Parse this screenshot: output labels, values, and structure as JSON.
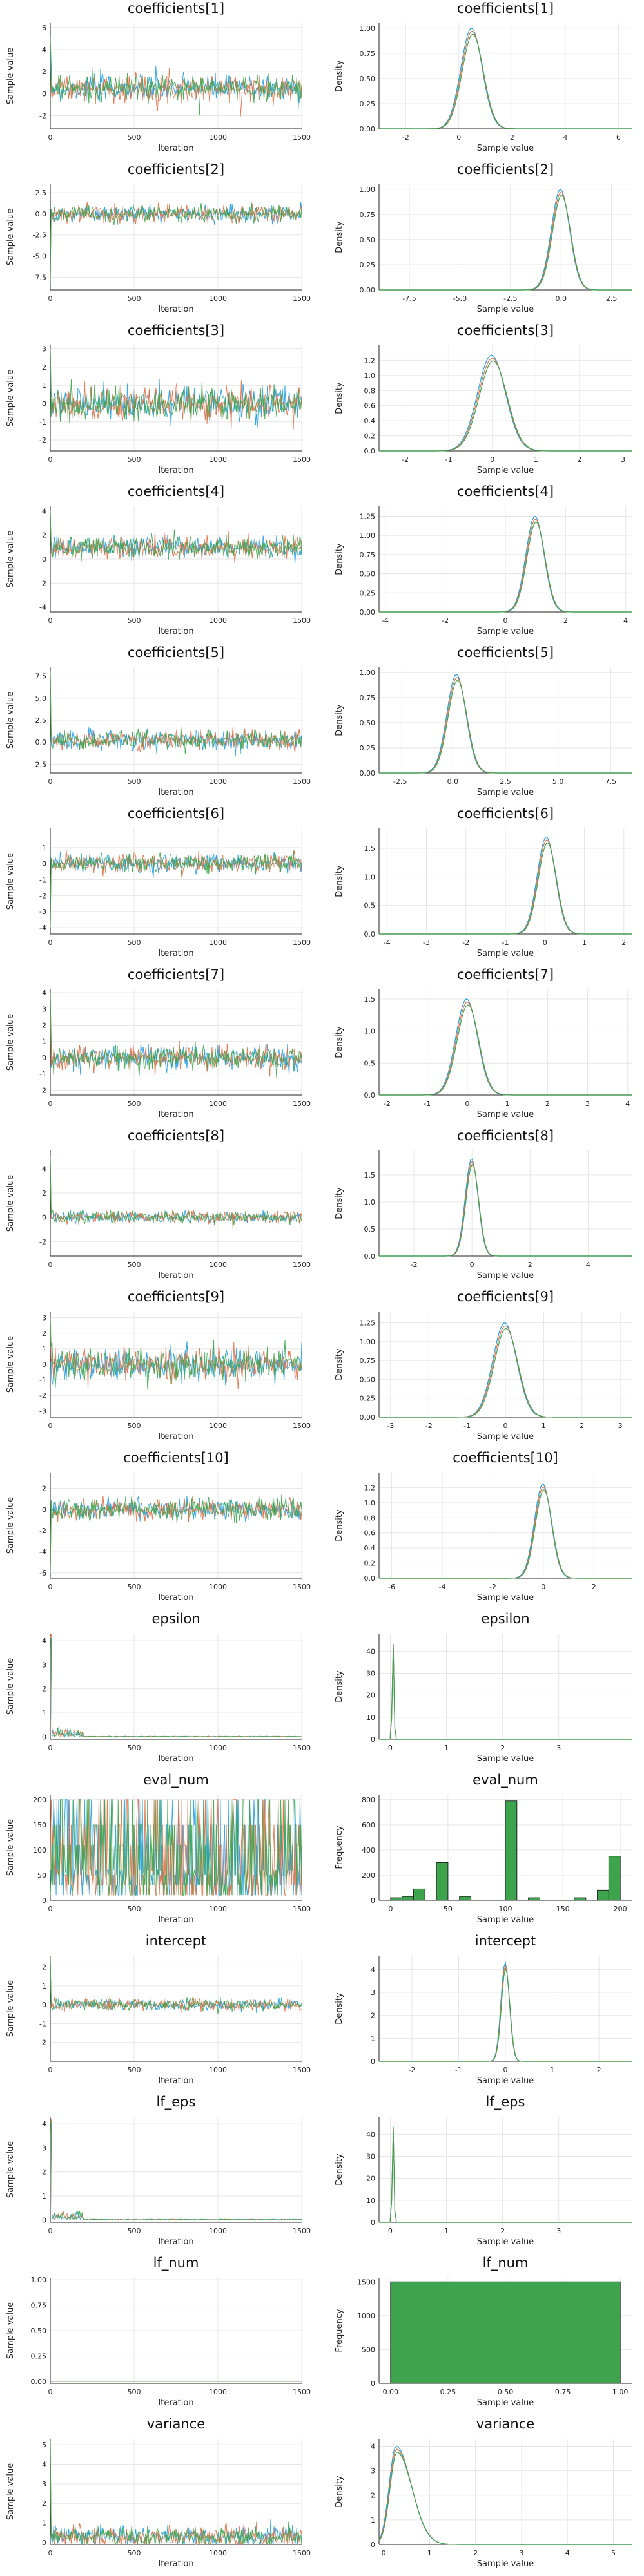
{
  "colors": {
    "chain1": "#1f9ee8",
    "chain2": "#e26f46",
    "chain3": "#3da44d",
    "hist_fill": "#3da44d",
    "grid": "#e6e6e6"
  },
  "chart_data": [
    {
      "param": "coefficients[1]",
      "trace": {
        "type": "line",
        "title": "coefficients[1]",
        "xlabel": "Iteration",
        "ylabel": "Sample value",
        "xlim": [
          0,
          1500
        ],
        "xticks": [
          "0",
          "500",
          "1000",
          "1500"
        ],
        "ylim": [
          -3.2,
          6.4
        ],
        "yticks": [
          "-2",
          "0",
          "2",
          "4",
          "6"
        ],
        "center": 0.5,
        "spread": 0.6,
        "burn_spike": 5
      },
      "density": {
        "type": "line",
        "title": "coefficients[1]",
        "xlabel": "Sample value",
        "ylabel": "Density",
        "xlim": [
          -3,
          6.5
        ],
        "xticks": [
          "-2",
          "0",
          "2",
          "4",
          "6"
        ],
        "ylim": [
          0,
          1.05
        ],
        "yticks": [
          "0.00",
          "0.25",
          "0.50",
          "0.75",
          "1.00"
        ],
        "mode": 0.5,
        "sd": 0.4,
        "peak": 1.0
      }
    },
    {
      "param": "coefficients[2]",
      "trace": {
        "type": "line",
        "title": "coefficients[2]",
        "xlabel": "Iteration",
        "ylabel": "Sample value",
        "xlim": [
          0,
          1500
        ],
        "xticks": [
          "0",
          "500",
          "1000",
          "1500"
        ],
        "ylim": [
          -9,
          3.5
        ],
        "yticks": [
          "-7.5",
          "-5.0",
          "-2.5",
          "0.0",
          "2.5"
        ],
        "center": 0.0,
        "spread": 0.5,
        "burn_spike": -8
      },
      "density": {
        "type": "line",
        "title": "coefficients[2]",
        "xlabel": "Sample value",
        "ylabel": "Density",
        "xlim": [
          -9,
          3.5
        ],
        "xticks": [
          "-7.5",
          "-5.0",
          "-2.5",
          "0.0",
          "2.5"
        ],
        "ylim": [
          0,
          1.05
        ],
        "yticks": [
          "0.00",
          "0.25",
          "0.50",
          "0.75",
          "1.00"
        ],
        "mode": 0.0,
        "sd": 0.45,
        "peak": 1.0
      }
    },
    {
      "param": "coefficients[3]",
      "trace": {
        "type": "line",
        "title": "coefficients[3]",
        "xlabel": "Iteration",
        "ylabel": "Sample value",
        "xlim": [
          0,
          1500
        ],
        "xticks": [
          "0",
          "500",
          "1000",
          "1500"
        ],
        "ylim": [
          -2.6,
          3.2
        ],
        "yticks": [
          "-2",
          "-1",
          "0",
          "1",
          "2",
          "3"
        ],
        "center": 0.0,
        "spread": 0.45,
        "burn_spike": 3
      },
      "density": {
        "type": "line",
        "title": "coefficients[3]",
        "xlabel": "Sample value",
        "ylabel": "Density",
        "xlim": [
          -2.6,
          3.2
        ],
        "xticks": [
          "-2",
          "-1",
          "0",
          "1",
          "2",
          "3"
        ],
        "ylim": [
          0,
          1.4
        ],
        "yticks": [
          "0.0",
          "0.2",
          "0.4",
          "0.6",
          "0.8",
          "1.0",
          "1.2"
        ],
        "mode": 0.0,
        "sd": 0.32,
        "peak": 1.27
      }
    },
    {
      "param": "coefficients[4]",
      "trace": {
        "type": "line",
        "title": "coefficients[4]",
        "xlabel": "Iteration",
        "ylabel": "Sample value",
        "xlim": [
          0,
          1500
        ],
        "xticks": [
          "0",
          "500",
          "1000",
          "1500"
        ],
        "ylim": [
          -4.4,
          4.4
        ],
        "yticks": [
          "-4",
          "-2",
          "0",
          "2",
          "4"
        ],
        "center": 1.0,
        "spread": 0.45,
        "burn_spike": 4
      },
      "density": {
        "type": "line",
        "title": "coefficients[4]",
        "xlabel": "Sample value",
        "ylabel": "Density",
        "xlim": [
          -4.2,
          4.2
        ],
        "xticks": [
          "-4",
          "-2",
          "0",
          "2",
          "4"
        ],
        "ylim": [
          0,
          1.38
        ],
        "yticks": [
          "0.00",
          "0.25",
          "0.50",
          "0.75",
          "1.00",
          "1.25"
        ],
        "mode": 1.0,
        "sd": 0.3,
        "peak": 1.25
      }
    },
    {
      "param": "coefficients[5]",
      "trace": {
        "type": "line",
        "title": "coefficients[5]",
        "xlabel": "Iteration",
        "ylabel": "Sample value",
        "xlim": [
          0,
          1500
        ],
        "xticks": [
          "0",
          "500",
          "1000",
          "1500"
        ],
        "ylim": [
          -3.5,
          8.5
        ],
        "yticks": [
          "-2.5",
          "0.0",
          "2.5",
          "5.0",
          "7.5"
        ],
        "center": 0.2,
        "spread": 0.55,
        "burn_spike": 8
      },
      "density": {
        "type": "line",
        "title": "coefficients[5]",
        "xlabel": "Sample value",
        "ylabel": "Density",
        "xlim": [
          -3.5,
          8.5
        ],
        "xticks": [
          "-2.5",
          "0.0",
          "2.5",
          "5.0",
          "7.5"
        ],
        "ylim": [
          0,
          1.05
        ],
        "yticks": [
          "0.00",
          "0.25",
          "0.50",
          "0.75",
          "1.00"
        ],
        "mode": 0.2,
        "sd": 0.45,
        "peak": 0.98
      }
    },
    {
      "param": "coefficients[6]",
      "trace": {
        "type": "line",
        "title": "coefficients[6]",
        "xlabel": "Iteration",
        "ylabel": "Sample value",
        "xlim": [
          0,
          1500
        ],
        "xticks": [
          "0",
          "500",
          "1000",
          "1500"
        ],
        "ylim": [
          -4.4,
          2.2
        ],
        "yticks": [
          "-4",
          "-3",
          "-2",
          "-1",
          "0",
          "1"
        ],
        "center": 0.0,
        "spread": 0.3,
        "burn_spike": -4
      },
      "density": {
        "type": "line",
        "title": "coefficients[6]",
        "xlabel": "Sample value",
        "ylabel": "Density",
        "xlim": [
          -4.2,
          2.2
        ],
        "xticks": [
          "-4",
          "-3",
          "-2",
          "-1",
          "0",
          "1",
          "2"
        ],
        "ylim": [
          0,
          1.85
        ],
        "yticks": [
          "0.0",
          "0.5",
          "1.0",
          "1.5"
        ],
        "mode": 0.05,
        "sd": 0.23,
        "peak": 1.7
      }
    },
    {
      "param": "coefficients[7]",
      "trace": {
        "type": "line",
        "title": "coefficients[7]",
        "xlabel": "Iteration",
        "ylabel": "Sample value",
        "xlim": [
          0,
          1500
        ],
        "xticks": [
          "0",
          "500",
          "1000",
          "1500"
        ],
        "ylim": [
          -2.3,
          4.2
        ],
        "yticks": [
          "-2",
          "-1",
          "0",
          "1",
          "2",
          "3",
          "4"
        ],
        "center": 0.0,
        "spread": 0.35,
        "burn_spike": 4
      },
      "density": {
        "type": "line",
        "title": "coefficients[7]",
        "xlabel": "Sample value",
        "ylabel": "Density",
        "xlim": [
          -2.2,
          4.1
        ],
        "xticks": [
          "-2",
          "-1",
          "0",
          "1",
          "2",
          "3",
          "4"
        ],
        "ylim": [
          0,
          1.65
        ],
        "yticks": [
          "0.0",
          "0.5",
          "1.0",
          "1.5"
        ],
        "mode": 0.0,
        "sd": 0.27,
        "peak": 1.5
      }
    },
    {
      "param": "coefficients[8]",
      "trace": {
        "type": "line",
        "title": "coefficients[8]",
        "xlabel": "Iteration",
        "ylabel": "Sample value",
        "xlim": [
          0,
          1500
        ],
        "xticks": [
          "0",
          "500",
          "1000",
          "1500"
        ],
        "ylim": [
          -3.2,
          5.5
        ],
        "yticks": [
          "-2",
          "0",
          "2",
          "4"
        ],
        "center": 0.0,
        "spread": 0.25,
        "burn_spike": 5
      },
      "density": {
        "type": "line",
        "title": "coefficients[8]",
        "xlabel": "Sample value",
        "ylabel": "Density",
        "xlim": [
          -3.2,
          5.5
        ],
        "xticks": [
          "-2",
          "0",
          "2",
          "4"
        ],
        "ylim": [
          0,
          1.95
        ],
        "yticks": [
          "0.0",
          "0.5",
          "1.0",
          "1.5"
        ],
        "mode": 0.0,
        "sd": 0.22,
        "peak": 1.8
      }
    },
    {
      "param": "coefficients[9]",
      "trace": {
        "type": "line",
        "title": "coefficients[9]",
        "xlabel": "Iteration",
        "ylabel": "Sample value",
        "xlim": [
          0,
          1500
        ],
        "xticks": [
          "0",
          "500",
          "1000",
          "1500"
        ],
        "ylim": [
          -3.4,
          3.4
        ],
        "yticks": [
          "-3",
          "-2",
          "-1",
          "0",
          "1",
          "2",
          "3"
        ],
        "center": 0.0,
        "spread": 0.5,
        "burn_spike": 3
      },
      "density": {
        "type": "line",
        "title": "coefficients[9]",
        "xlabel": "Sample value",
        "ylabel": "Density",
        "xlim": [
          -3.3,
          3.3
        ],
        "xticks": [
          "-3",
          "-2",
          "-1",
          "0",
          "1",
          "2",
          "3"
        ],
        "ylim": [
          0,
          1.4
        ],
        "yticks": [
          "0.00",
          "0.25",
          "0.50",
          "0.75",
          "1.00",
          "1.25"
        ],
        "mode": 0.0,
        "sd": 0.31,
        "peak": 1.25
      }
    },
    {
      "param": "coefficients[10]",
      "trace": {
        "type": "line",
        "title": "coefficients[10]",
        "xlabel": "Iteration",
        "ylabel": "Sample value",
        "xlim": [
          0,
          1500
        ],
        "xticks": [
          "0",
          "500",
          "1000",
          "1500"
        ],
        "ylim": [
          -6.5,
          3.5
        ],
        "yticks": [
          "-6",
          "-4",
          "-2",
          "0",
          "2"
        ],
        "center": 0.0,
        "spread": 0.5,
        "burn_spike": -6
      },
      "density": {
        "type": "line",
        "title": "coefficients[10]",
        "xlabel": "Sample value",
        "ylabel": "Density",
        "xlim": [
          -6.5,
          3.5
        ],
        "xticks": [
          "-6",
          "-4",
          "-2",
          "0",
          "2"
        ],
        "ylim": [
          0,
          1.4
        ],
        "yticks": [
          "0.0",
          "0.2",
          "0.4",
          "0.6",
          "0.8",
          "1.0",
          "1.2"
        ],
        "mode": 0.0,
        "sd": 0.33,
        "peak": 1.25
      }
    },
    {
      "param": "epsilon",
      "trace": {
        "type": "line",
        "title": "epsilon",
        "xlabel": "Iteration",
        "ylabel": "Sample value",
        "xlim": [
          0,
          1500
        ],
        "xticks": [
          "0",
          "500",
          "1000",
          "1500"
        ],
        "ylim": [
          -0.1,
          4.3
        ],
        "yticks": [
          "0",
          "1",
          "2",
          "3",
          "4"
        ],
        "center": 0.01,
        "spread": 0.01,
        "burn_spike": 4.0,
        "burn_len": 200
      },
      "density": {
        "type": "line",
        "title": "epsilon",
        "xlabel": "Sample value",
        "ylabel": "Density",
        "xlim": [
          -0.2,
          4.3
        ],
        "xticks": [
          "0",
          "1",
          "2",
          "3"
        ],
        "ylim": [
          0,
          48
        ],
        "yticks": [
          "0",
          "10",
          "20",
          "30",
          "40"
        ],
        "mode": 0.05,
        "sd": 0.015,
        "peak": 45
      }
    },
    {
      "param": "eval_num",
      "trace": {
        "type": "line",
        "title": "eval_num",
        "xlabel": "Iteration",
        "ylabel": "Sample value",
        "xlim": [
          0,
          1500
        ],
        "xticks": [
          "0",
          "500",
          "1000",
          "1500"
        ],
        "ylim": [
          0,
          210
        ],
        "yticks": [
          "0",
          "50",
          "100",
          "150",
          "200"
        ],
        "levels": [
          10,
          30,
          50,
          60,
          110,
          150,
          200
        ]
      },
      "histogram": {
        "type": "bar",
        "title": "eval_num",
        "xlabel": "Sample value",
        "ylabel": "Frequency",
        "xlim": [
          -10,
          210
        ],
        "xticks": [
          "0",
          "50",
          "100",
          "150",
          "200"
        ],
        "ylim": [
          0,
          840
        ],
        "yticks": [
          "0",
          "200",
          "400",
          "600",
          "800"
        ],
        "bins": [
          [
            0,
            10,
            20
          ],
          [
            10,
            20,
            30
          ],
          [
            20,
            30,
            90
          ],
          [
            40,
            50,
            300
          ],
          [
            60,
            70,
            30
          ],
          [
            100,
            110,
            790
          ],
          [
            120,
            130,
            20
          ],
          [
            160,
            170,
            20
          ],
          [
            180,
            190,
            80
          ],
          [
            190,
            200,
            350
          ]
        ]
      }
    },
    {
      "param": "intercept",
      "trace": {
        "type": "line",
        "title": "intercept",
        "xlabel": "Iteration",
        "ylabel": "Sample value",
        "xlim": [
          0,
          1500
        ],
        "xticks": [
          "0",
          "500",
          "1000",
          "1500"
        ],
        "ylim": [
          -3.0,
          2.6
        ],
        "yticks": [
          "-2",
          "-1",
          "0",
          "1",
          "2"
        ],
        "center": 0.0,
        "spread": 0.15,
        "burn_spike": 2.5
      },
      "density": {
        "type": "line",
        "title": "intercept",
        "xlabel": "Sample value",
        "ylabel": "Density",
        "xlim": [
          -2.7,
          2.7
        ],
        "xticks": [
          "-2",
          "-1",
          "0",
          "1",
          "2"
        ],
        "ylim": [
          0,
          4.6
        ],
        "yticks": [
          "0",
          "1",
          "2",
          "3",
          "4"
        ],
        "mode": 0.0,
        "sd": 0.09,
        "peak": 4.3
      }
    },
    {
      "param": "lf_eps",
      "trace": {
        "type": "line",
        "title": "lf_eps",
        "xlabel": "Iteration",
        "ylabel": "Sample value",
        "xlim": [
          0,
          1500
        ],
        "xticks": [
          "0",
          "500",
          "1000",
          "1500"
        ],
        "ylim": [
          -0.1,
          4.3
        ],
        "yticks": [
          "0",
          "1",
          "2",
          "3",
          "4"
        ],
        "center": 0.01,
        "spread": 0.01,
        "burn_spike": 4.0,
        "burn_len": 200
      },
      "density": {
        "type": "line",
        "title": "lf_eps",
        "xlabel": "Sample value",
        "ylabel": "Density",
        "xlim": [
          -0.2,
          4.3
        ],
        "xticks": [
          "0",
          "1",
          "2",
          "3"
        ],
        "ylim": [
          0,
          48
        ],
        "yticks": [
          "0",
          "10",
          "20",
          "30",
          "40"
        ],
        "mode": 0.05,
        "sd": 0.015,
        "peak": 45
      }
    },
    {
      "param": "lf_num",
      "trace": {
        "type": "line",
        "title": "lf_num",
        "xlabel": "Iteration",
        "ylabel": "Sample value",
        "xlim": [
          0,
          1500
        ],
        "xticks": [
          "0",
          "500",
          "1000",
          "1500"
        ],
        "ylim": [
          -0.02,
          1.02
        ],
        "yticks": [
          "0.00",
          "0.25",
          "0.50",
          "0.75",
          "1.00"
        ],
        "constant": 0
      },
      "histogram": {
        "type": "bar",
        "title": "lf_num",
        "xlabel": "Sample value",
        "ylabel": "Frequency",
        "xlim": [
          -0.05,
          1.05
        ],
        "xticks": [
          "0.00",
          "0.25",
          "0.50",
          "0.75",
          "1.00"
        ],
        "ylim": [
          0,
          1560
        ],
        "yticks": [
          "0",
          "500",
          "1000",
          "1500"
        ],
        "bins": [
          [
            0,
            1,
            1500
          ]
        ]
      }
    },
    {
      "param": "variance",
      "trace": {
        "type": "line",
        "title": "variance",
        "xlabel": "Iteration",
        "ylabel": "Sample value",
        "xlim": [
          0,
          1500
        ],
        "xticks": [
          "0",
          "500",
          "1000",
          "1500"
        ],
        "ylim": [
          -0.1,
          5.3
        ],
        "yticks": [
          "0",
          "1",
          "2",
          "3",
          "4",
          "5"
        ],
        "center": 0.3,
        "spread": 0.25,
        "burn_spike": 5.2
      },
      "density": {
        "type": "line",
        "title": "variance",
        "xlabel": "Sample value",
        "ylabel": "Density",
        "xlim": [
          -0.1,
          5.4
        ],
        "xticks": [
          "0",
          "1",
          "2",
          "3",
          "4",
          "5"
        ],
        "ylim": [
          0,
          4.3
        ],
        "yticks": [
          "0",
          "1",
          "2",
          "3",
          "4"
        ],
        "mode": 0.28,
        "sd": 0.15,
        "peak": 4.0,
        "skew": true
      }
    }
  ]
}
